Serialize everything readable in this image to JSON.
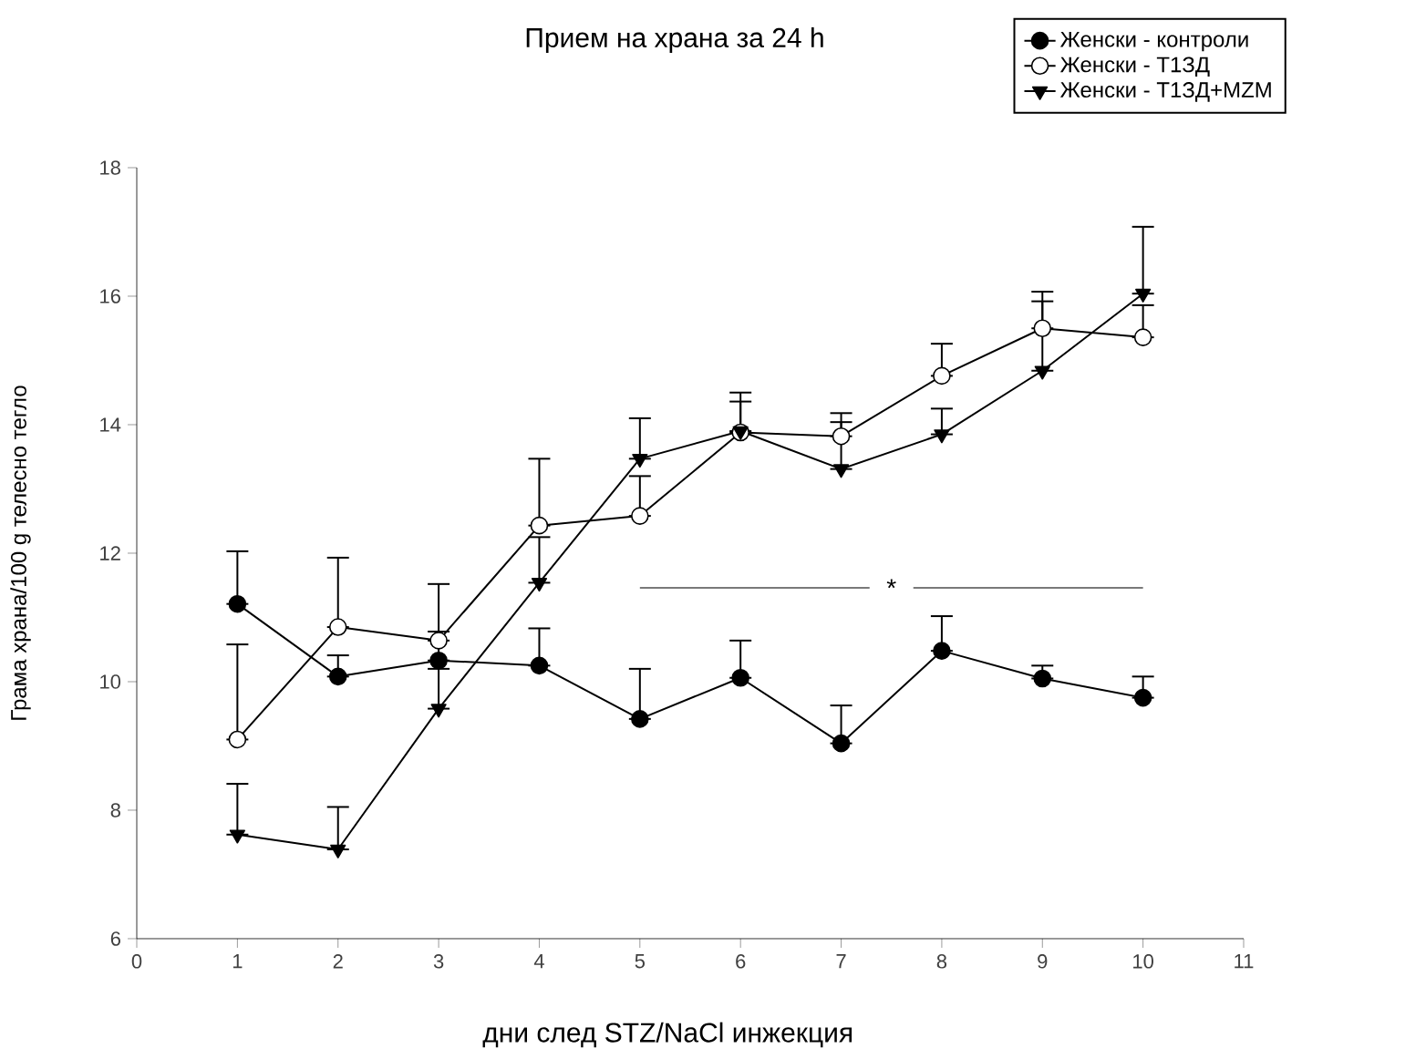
{
  "chart_data": {
    "type": "line",
    "title": "Прием на храна за 24 h",
    "xlabel": "дни след STZ/NaCl инжекция",
    "ylabel": "Грама храна/100 g телесно тегло",
    "x": [
      1,
      2,
      3,
      4,
      5,
      6,
      7,
      8,
      9,
      10
    ],
    "series": [
      {
        "name": "Женски - контроли",
        "color": "#000000",
        "marker": "circle",
        "values": [
          11.21,
          10.08,
          10.33,
          10.25,
          9.42,
          10.06,
          9.04,
          10.48,
          10.05,
          9.75
        ],
        "errors": [
          [
            11.21,
            12.03
          ],
          [
            10.08,
            10.41
          ],
          [
            10.33,
            10.78
          ],
          [
            10.25,
            10.83
          ],
          [
            9.42,
            10.2
          ],
          [
            10.06,
            10.64
          ],
          [
            9.04,
            9.63
          ],
          [
            10.48,
            11.02
          ],
          [
            10.05,
            10.25
          ],
          [
            9.75,
            10.08
          ]
        ]
      },
      {
        "name": "Женски - Т1ЗД",
        "color": "#ffffff",
        "marker": "circle",
        "values": [
          9.1,
          10.85,
          10.64,
          12.43,
          12.58,
          13.88,
          13.82,
          14.76,
          15.5,
          15.36
        ],
        "errors": [
          [
            9.1,
            10.58
          ],
          [
            10.85,
            11.93
          ],
          [
            10.64,
            11.52
          ],
          [
            12.43,
            13.47
          ],
          [
            12.58,
            13.2
          ],
          [
            13.88,
            14.36
          ],
          [
            13.82,
            14.04
          ],
          [
            14.76,
            15.26
          ],
          [
            15.5,
            16.07
          ],
          [
            15.36,
            15.86
          ]
        ]
      },
      {
        "name": "Женски - Т1ЗД+MZM",
        "color": "#000000",
        "marker": "triangle",
        "values": [
          7.62,
          7.39,
          9.58,
          11.54,
          13.47,
          13.9,
          13.31,
          13.85,
          14.84,
          16.04
        ],
        "errors": [
          [
            7.62,
            8.41
          ],
          [
            7.39,
            8.05
          ],
          [
            9.58,
            10.2
          ],
          [
            11.54,
            12.25
          ],
          [
            13.47,
            14.1
          ],
          [
            13.9,
            14.5
          ],
          [
            13.31,
            14.18
          ],
          [
            13.85,
            14.25
          ],
          [
            14.84,
            15.92
          ],
          [
            16.04,
            17.08
          ]
        ]
      }
    ],
    "annotations": [
      "*"
    ],
    "xlim": [
      0,
      11
    ],
    "xticks": [
      0,
      1,
      2,
      3,
      4,
      5,
      6,
      7,
      8,
      9,
      10,
      11
    ],
    "ylim": [
      6,
      18
    ],
    "yticks": [
      6,
      8,
      10,
      12,
      14,
      16,
      18
    ],
    "legend": "top right",
    "grid": false
  }
}
